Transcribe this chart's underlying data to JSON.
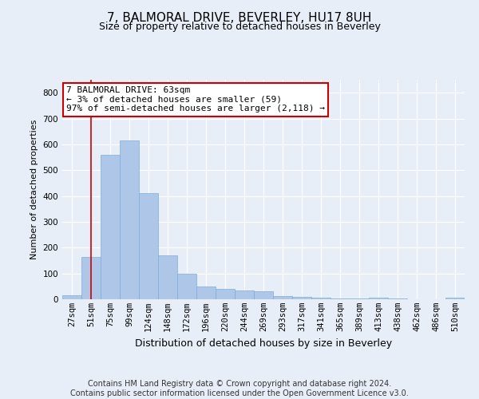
{
  "title": "7, BALMORAL DRIVE, BEVERLEY, HU17 8UH",
  "subtitle": "Size of property relative to detached houses in Beverley",
  "xlabel": "Distribution of detached houses by size in Beverley",
  "ylabel": "Number of detached properties",
  "categories": [
    "27sqm",
    "51sqm",
    "75sqm",
    "99sqm",
    "124sqm",
    "148sqm",
    "172sqm",
    "196sqm",
    "220sqm",
    "244sqm",
    "269sqm",
    "293sqm",
    "317sqm",
    "341sqm",
    "365sqm",
    "389sqm",
    "413sqm",
    "438sqm",
    "462sqm",
    "486sqm",
    "510sqm"
  ],
  "values": [
    15,
    165,
    560,
    615,
    410,
    170,
    100,
    50,
    40,
    35,
    30,
    12,
    10,
    5,
    4,
    4,
    5,
    2,
    0,
    0,
    5
  ],
  "bar_color": "#aec6e8",
  "bar_edge_color": "#7bafd4",
  "vline_x": 1.0,
  "vline_color": "#cc0000",
  "annotation_text": "7 BALMORAL DRIVE: 63sqm\n← 3% of detached houses are smaller (59)\n97% of semi-detached houses are larger (2,118) →",
  "annotation_box_color": "#ffffff",
  "annotation_box_edge_color": "#cc0000",
  "ylim": [
    0,
    850
  ],
  "yticks": [
    0,
    100,
    200,
    300,
    400,
    500,
    600,
    700,
    800
  ],
  "footer": "Contains HM Land Registry data © Crown copyright and database right 2024.\nContains public sector information licensed under the Open Government Licence v3.0.",
  "background_color": "#e8eef8",
  "plot_background_color": "#e8eef8",
  "grid_color": "#ffffff",
  "title_fontsize": 11,
  "subtitle_fontsize": 9,
  "footer_fontsize": 7,
  "ylabel_fontsize": 8,
  "xlabel_fontsize": 9,
  "tick_fontsize": 7.5,
  "ann_fontsize": 8
}
